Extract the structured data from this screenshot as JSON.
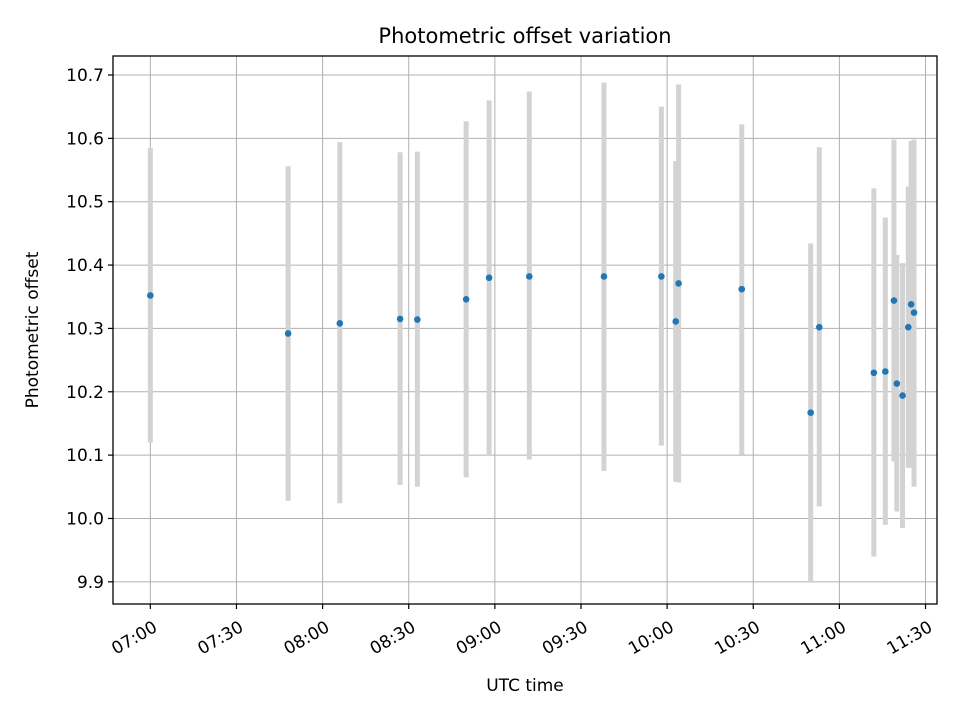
{
  "chart_data": {
    "type": "scatter",
    "title": "Photometric offset variation",
    "xlabel": "UTC time",
    "ylabel": "Photometric offset",
    "grid": true,
    "xlim": [
      "06:47",
      "11:34"
    ],
    "ylim": [
      9.865,
      10.73
    ],
    "x_ticks": [
      "07:00",
      "07:30",
      "08:00",
      "08:30",
      "09:00",
      "09:30",
      "10:00",
      "10:30",
      "11:00",
      "11:30"
    ],
    "y_ticks": [
      "9.9",
      "10.0",
      "10.1",
      "10.2",
      "10.3",
      "10.4",
      "10.5",
      "10.6",
      "10.7"
    ],
    "series": [
      {
        "marker_color": "#1f77b4",
        "errorbar_color": "#d3d3d3",
        "points": [
          {
            "t": "07:00",
            "y": 10.352,
            "lo": 10.12,
            "hi": 10.585
          },
          {
            "t": "07:48",
            "y": 10.292,
            "lo": 10.028,
            "hi": 10.556
          },
          {
            "t": "08:06",
            "y": 10.308,
            "lo": 10.024,
            "hi": 10.594
          },
          {
            "t": "08:27",
            "y": 10.315,
            "lo": 10.053,
            "hi": 10.578
          },
          {
            "t": "08:33",
            "y": 10.314,
            "lo": 10.05,
            "hi": 10.579
          },
          {
            "t": "08:50",
            "y": 10.346,
            "lo": 10.065,
            "hi": 10.627
          },
          {
            "t": "08:58",
            "y": 10.38,
            "lo": 10.1,
            "hi": 10.66
          },
          {
            "t": "09:12",
            "y": 10.382,
            "lo": 10.093,
            "hi": 10.674
          },
          {
            "t": "09:38",
            "y": 10.382,
            "lo": 10.075,
            "hi": 10.688
          },
          {
            "t": "09:58",
            "y": 10.382,
            "lo": 10.115,
            "hi": 10.65
          },
          {
            "t": "10:03",
            "y": 10.311,
            "lo": 10.058,
            "hi": 10.564
          },
          {
            "t": "10:04",
            "y": 10.371,
            "lo": 10.057,
            "hi": 10.685
          },
          {
            "t": "10:26",
            "y": 10.362,
            "lo": 10.101,
            "hi": 10.622
          },
          {
            "t": "10:50",
            "y": 10.167,
            "lo": 9.9,
            "hi": 10.434
          },
          {
            "t": "10:53",
            "y": 10.302,
            "lo": 10.019,
            "hi": 10.586
          },
          {
            "t": "11:12",
            "y": 10.23,
            "lo": 9.94,
            "hi": 10.521
          },
          {
            "t": "11:16",
            "y": 10.232,
            "lo": 9.99,
            "hi": 10.475
          },
          {
            "t": "11:19",
            "y": 10.344,
            "lo": 10.09,
            "hi": 10.598
          },
          {
            "t": "11:20",
            "y": 10.213,
            "lo": 10.011,
            "hi": 10.416
          },
          {
            "t": "11:22",
            "y": 10.194,
            "lo": 9.985,
            "hi": 10.403
          },
          {
            "t": "11:24",
            "y": 10.302,
            "lo": 10.08,
            "hi": 10.524
          },
          {
            "t": "11:25",
            "y": 10.338,
            "lo": 10.08,
            "hi": 10.596
          },
          {
            "t": "11:26",
            "y": 10.325,
            "lo": 10.05,
            "hi": 10.598
          }
        ]
      }
    ]
  }
}
